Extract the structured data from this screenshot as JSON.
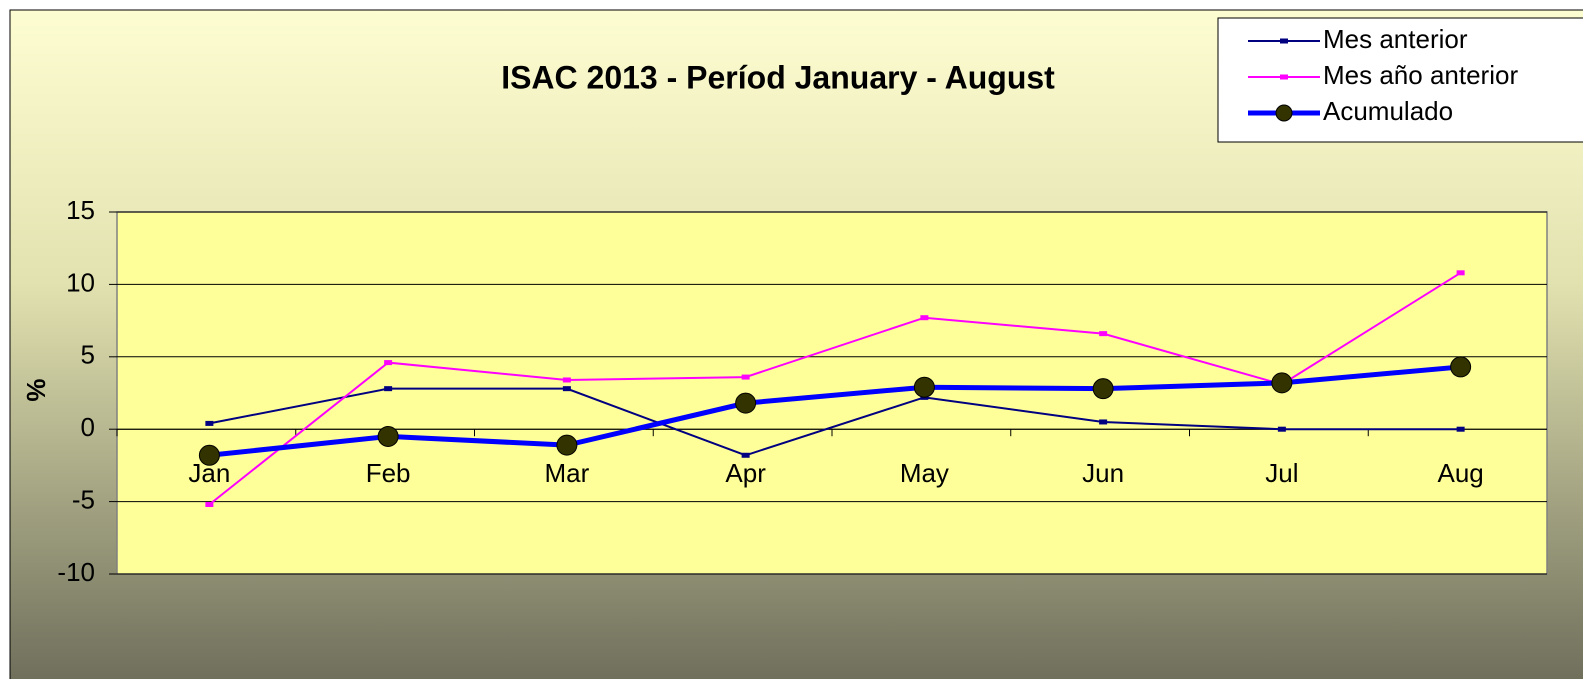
{
  "chart_data": {
    "type": "line",
    "title": "ISAC 2013 - Períod January - August",
    "ylabel": "%",
    "categories": [
      "Jan",
      "Feb",
      "Mar",
      "Apr",
      "May",
      "Jun",
      "Jul",
      "Aug"
    ],
    "series": [
      {
        "name": "Mes anterior",
        "color": "#000080",
        "width": 2,
        "marker": "dash",
        "values": [
          0.4,
          2.8,
          2.8,
          -1.8,
          2.2,
          0.5,
          0,
          0
        ]
      },
      {
        "name": "Mes año anterior",
        "color": "#ff00ff",
        "width": 2,
        "marker": "dash",
        "values": [
          -5.2,
          4.6,
          3.4,
          3.6,
          7.7,
          6.6,
          3.1,
          10.8
        ]
      },
      {
        "name": "Acumulado",
        "color": "#0000ff",
        "width": 5,
        "marker": "circle",
        "marker_color": "#333300",
        "values": [
          -1.8,
          -0.5,
          -1.1,
          1.8,
          2.9,
          2.8,
          3.2,
          4.3
        ]
      }
    ],
    "ylim": [
      -10,
      15
    ],
    "yticks": [
      -10,
      -5,
      0,
      5,
      10,
      15
    ],
    "grid": true,
    "legend": "top-right"
  }
}
